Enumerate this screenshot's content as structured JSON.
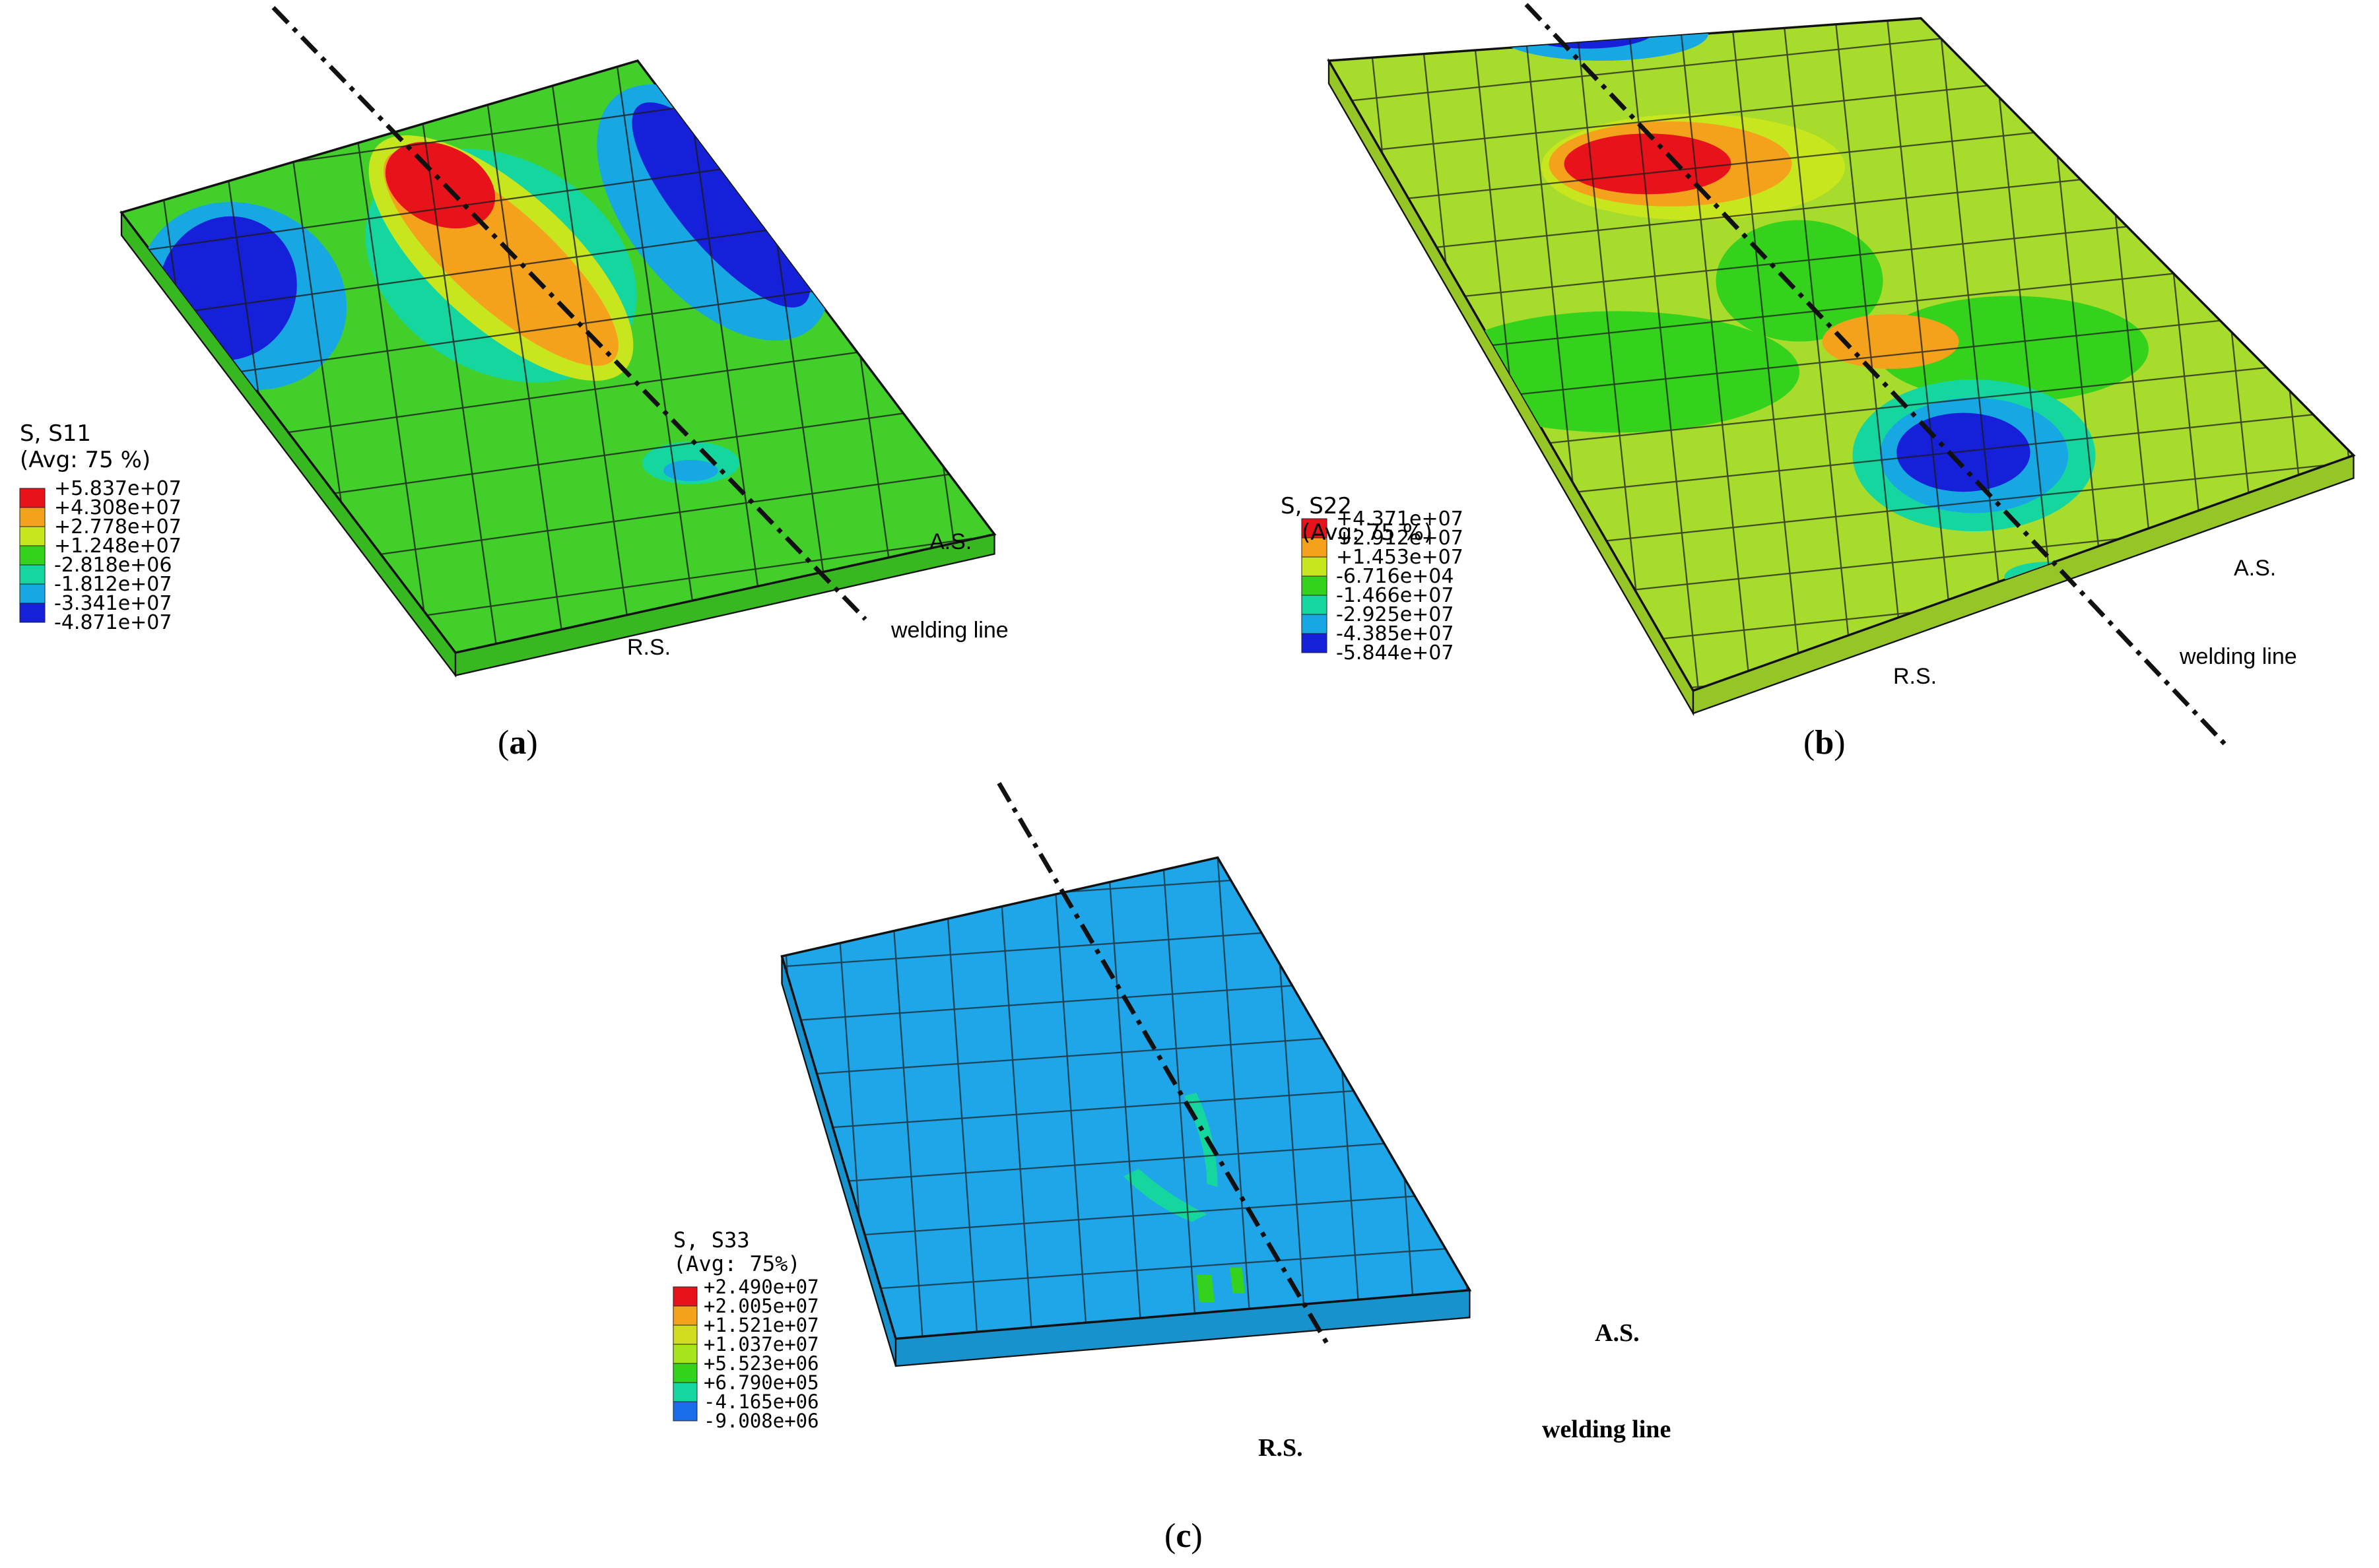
{
  "panels": [
    {
      "id": "a",
      "caption": "a",
      "legend": {
        "title_line1": "S, S11",
        "title_line2": "(Avg: 75 %)",
        "values": [
          "+5.837e+07",
          "+4.308e+07",
          "+2.778e+07",
          "+1.248e+07",
          "-2.818e+06",
          "-1.812e+07",
          "-3.341e+07",
          "-4.871e+07"
        ],
        "colors": [
          "#e8121a",
          "#f4a21c",
          "#c8e61e",
          "#34d21c",
          "#16d6a0",
          "#17a8e4",
          "#1620d8"
        ]
      },
      "labels": {
        "advancing_side": "A.S.",
        "retreating_side": "R.S.",
        "weld_line": "welding line"
      },
      "plate_color": "#42cf2a"
    },
    {
      "id": "b",
      "caption": "b",
      "legend": {
        "title_line1": "S, S22",
        "title_line2": "(Avg: 75 %)",
        "values": [
          "+4.371e+07",
          "+2.912e+07",
          "+1.453e+07",
          "-6.716e+04",
          "-1.466e+07",
          "-2.925e+07",
          "-4.385e+07",
          "-5.844e+07"
        ],
        "colors": [
          "#e8121a",
          "#f4a21c",
          "#c8e61e",
          "#34d21c",
          "#16d6a0",
          "#17a8e4",
          "#1620d8"
        ]
      },
      "labels": {
        "advancing_side": "A.S.",
        "retreating_side": "R.S.",
        "weld_line": "welding line"
      },
      "plate_color": "#a8dc2c"
    },
    {
      "id": "c",
      "caption": "c",
      "legend": {
        "title_line1": "S, S33",
        "title_line2": "(Avg: 75%)",
        "values": [
          "+2.490e+07",
          "+2.005e+07",
          "+1.521e+07",
          "+1.037e+07",
          "+5.523e+06",
          "+6.790e+05",
          "-4.165e+06",
          "-9.008e+06"
        ],
        "colors": [
          "#e8121a",
          "#f4a21c",
          "#d2dc1e",
          "#a8e41e",
          "#34d21c",
          "#16d6a0",
          "#1a6ee8"
        ]
      },
      "labels": {
        "advancing_side": "A.S.",
        "retreating_side": "R.S.",
        "weld_line": "welding line"
      },
      "plate_color": "#1fa6e8"
    }
  ]
}
